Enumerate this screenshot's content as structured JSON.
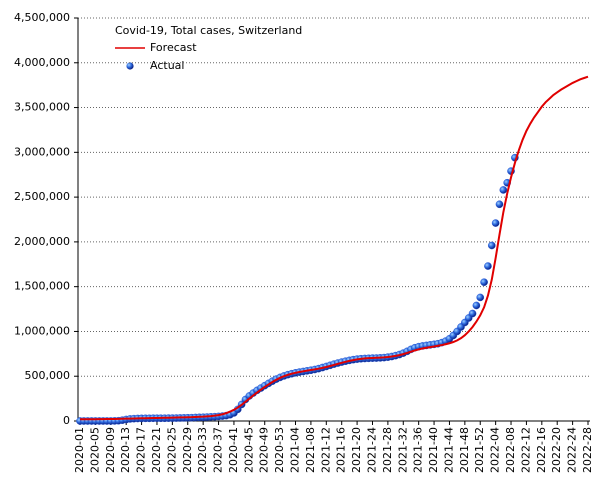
{
  "chart_data": {
    "type": "line",
    "title": "Covid-19, Total cases, Switzerland",
    "categories": [
      "2020-01",
      null,
      null,
      null,
      "2020-05",
      null,
      null,
      null,
      "2020-09",
      null,
      null,
      null,
      "2020-13",
      null,
      null,
      null,
      "2020-17",
      null,
      null,
      null,
      "2020-21",
      null,
      null,
      null,
      "2020-25",
      null,
      null,
      null,
      "2020-29",
      null,
      null,
      null,
      "2020-33",
      null,
      null,
      null,
      "2020-37",
      null,
      null,
      null,
      "2020-41",
      null,
      null,
      null,
      "2020-45",
      null,
      null,
      null,
      "2020-49",
      null,
      null,
      null,
      "2020-53",
      null,
      null,
      null,
      "2021-04",
      null,
      null,
      null,
      "2021-08",
      null,
      null,
      null,
      "2021-12",
      null,
      null,
      null,
      "2021-16",
      null,
      null,
      null,
      "2021-20",
      null,
      null,
      null,
      "2021-24",
      null,
      null,
      null,
      "2021-28",
      null,
      null,
      null,
      "2021-32",
      null,
      null,
      null,
      "2021-36",
      null,
      null,
      null,
      "2021-40",
      null,
      null,
      null,
      "2021-44",
      null,
      null,
      null,
      "2021-48",
      null,
      null,
      null,
      "2021-52",
      null,
      null,
      null,
      "2022-04",
      null,
      null,
      null,
      "2022-08",
      null,
      null,
      null,
      "2022-12",
      null,
      null,
      null,
      "2022-16",
      null,
      null,
      null,
      "2022-20",
      null,
      null,
      null,
      "2022-24",
      null,
      null,
      null,
      "2022-28"
    ],
    "series": [
      {
        "name": "Forecast",
        "style": "line",
        "color": "#e00000",
        "values": [
          20000,
          20000,
          20000,
          20000,
          20000,
          21000,
          21000,
          22000,
          22000,
          23000,
          24000,
          25000,
          26000,
          27000,
          28000,
          29000,
          30000,
          31000,
          32000,
          33000,
          34000,
          35000,
          36000,
          37000,
          38000,
          39000,
          40000,
          41000,
          42000,
          43000,
          45000,
          47000,
          49000,
          52000,
          55000,
          60000,
          66000,
          75000,
          88000,
          105000,
          125000,
          150000,
          180000,
          215000,
          250000,
          285000,
          318000,
          350000,
          380000,
          408000,
          435000,
          460000,
          482000,
          500000,
          515000,
          528000,
          538000,
          547000,
          555000,
          562000,
          569000,
          576000,
          584000,
          593000,
          603000,
          614000,
          626000,
          638000,
          650000,
          661000,
          671000,
          680000,
          688000,
          694000,
          699000,
          702000,
          704000,
          706000,
          708000,
          711000,
          715000,
          720000,
          727000,
          736000,
          747000,
          760000,
          774000,
          788000,
          800000,
          810000,
          818000,
          825000,
          832000,
          840000,
          848000,
          857000,
          868000,
          882000,
          900000,
          925000,
          958000,
          1000000,
          1050000,
          1110000,
          1180000,
          1270000,
          1400000,
          1580000,
          1820000,
          2080000,
          2330000,
          2540000,
          2720000,
          2880000,
          3020000,
          3140000,
          3240000,
          3320000,
          3390000,
          3450000,
          3510000,
          3560000,
          3600000,
          3640000,
          3670000,
          3700000,
          3725000,
          3750000,
          3775000,
          3795000,
          3815000,
          3830000,
          3845000
        ]
      },
      {
        "name": "Actual",
        "style": "markers",
        "color": "#1f4fd0",
        "values": [
          0,
          0,
          0,
          0,
          0,
          0,
          0,
          0,
          0,
          1000,
          3000,
          9000,
          17000,
          23000,
          26000,
          28000,
          29000,
          30000,
          30000,
          31000,
          31000,
          31000,
          31000,
          32000,
          32000,
          33000,
          34000,
          35000,
          36000,
          37000,
          39000,
          41000,
          42000,
          44000,
          46000,
          48000,
          51000,
          55000,
          60000,
          70000,
          90000,
          130000,
          185000,
          240000,
          280000,
          312000,
          342000,
          368000,
          395000,
          420000,
          445000,
          468000,
          487000,
          503000,
          517000,
          528000,
          538000,
          546000,
          553000,
          560000,
          567000,
          575000,
          585000,
          597000,
          609000,
          622000,
          635000,
          647000,
          658000,
          668000,
          677000,
          685000,
          691000,
          695000,
          698000,
          700000,
          702000,
          703000,
          705000,
          708000,
          713000,
          720000,
          730000,
          742000,
          758000,
          778000,
          800000,
          818000,
          830000,
          838000,
          844000,
          850000,
          856000,
          863000,
          875000,
          892000,
          918000,
          955000,
          1000000,
          1050000,
          1100000,
          1150000,
          1200000,
          1290000,
          1380000,
          1550000,
          1730000,
          1960000,
          2210000,
          2420000,
          2580000,
          2660000,
          2790000,
          2940000,
          null,
          null,
          null,
          null,
          null,
          null,
          null,
          null,
          null,
          null,
          null,
          null,
          null,
          null,
          null,
          null,
          null,
          null,
          null
        ]
      }
    ],
    "ylim": [
      0,
      4500000
    ],
    "yticks": [
      {
        "value": 0,
        "label": "0"
      },
      {
        "value": 500000,
        "label": "500,000"
      },
      {
        "value": 1000000,
        "label": "1,000,000"
      },
      {
        "value": 1500000,
        "label": "1,500,000"
      },
      {
        "value": 2000000,
        "label": "2,000,000"
      },
      {
        "value": 2500000,
        "label": "2,500,000"
      },
      {
        "value": 3000000,
        "label": "3,000,000"
      },
      {
        "value": 3500000,
        "label": "3,500,000"
      },
      {
        "value": 4000000,
        "label": "4,000,000"
      },
      {
        "value": 4500000,
        "label": "4,500,000"
      }
    ],
    "grid": true
  }
}
